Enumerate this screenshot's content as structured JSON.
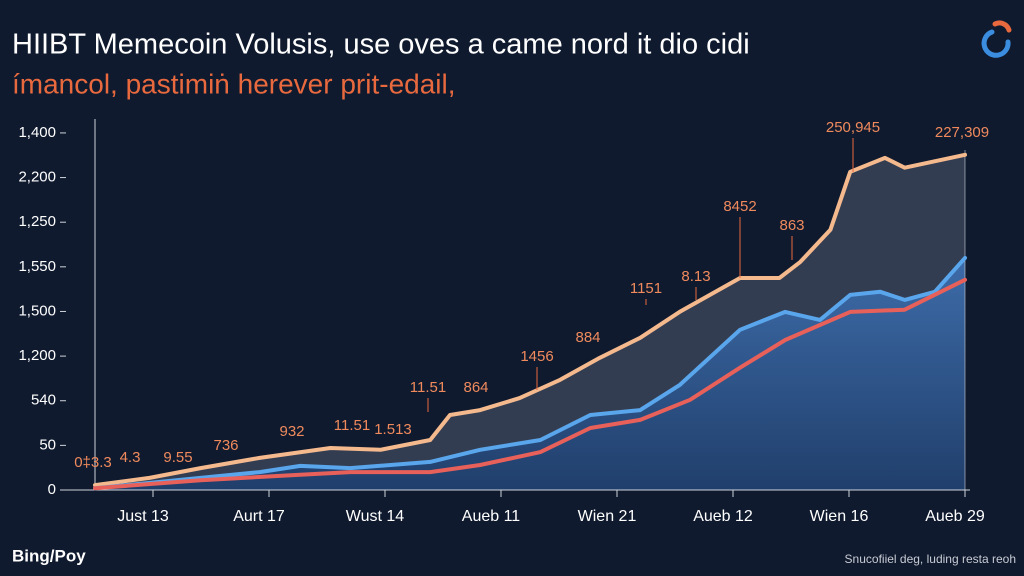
{
  "chart_data": {
    "type": "line",
    "title": "HIIBT Memecoin Volusis, use oves a came nord it dio cidi",
    "subtitle": "ímancol, pastimiṅ herever prit-edail,",
    "source_left": "Bing/Poy",
    "source_right": "Snucofiiel deg, luding resta reoh",
    "xlim": [
      0,
      7.5
    ],
    "xticks": [
      {
        "value": 0.5,
        "label": "Just 13"
      },
      {
        "value": 1.5,
        "label": "Aurt 17"
      },
      {
        "value": 2.5,
        "label": "Wust 14"
      },
      {
        "value": 3.5,
        "label": "Aueb 11"
      },
      {
        "value": 4.5,
        "label": "Wien 21"
      },
      {
        "value": 5.5,
        "label": "Aueb 12"
      },
      {
        "value": 6.5,
        "label": "Wien 16"
      },
      {
        "value": 7.5,
        "label": "Aueb 29"
      }
    ],
    "ylim": [
      0,
      8.2
    ],
    "yticks": [
      0,
      {
        "value": 1,
        "label": "50"
      },
      {
        "value": 2,
        "label": "540"
      },
      {
        "value": 3,
        "label": "1,200"
      },
      {
        "value": 4,
        "label": "1,500"
      },
      {
        "value": 5,
        "label": "1,550"
      },
      {
        "value": 6,
        "label": "1,250"
      },
      {
        "value": 7,
        "label": "2,200"
      },
      {
        "value": 8,
        "label": "1,400"
      }
    ],
    "series": [
      {
        "color": "#f5b98e",
        "x": [
          0,
          0.47,
          0.91,
          1.42,
          2.03,
          2.46,
          2.89,
          3.06,
          3.32,
          3.66,
          4.01,
          4.35,
          4.7,
          5.04,
          5.56,
          5.9,
          6.08,
          6.34,
          6.51,
          6.81,
          6.98,
          7.5
        ],
        "values": [
          0.11,
          0.27,
          0.49,
          0.72,
          0.94,
          0.9,
          1.12,
          1.68,
          1.79,
          2.06,
          2.47,
          2.96,
          3.41,
          3.99,
          4.75,
          4.75,
          5.11,
          5.83,
          7.13,
          7.44,
          7.22,
          7.51
        ]
      },
      {
        "color": "#5aa6ec",
        "x": [
          0,
          0.91,
          1.42,
          1.77,
          2.2,
          2.89,
          3.32,
          3.84,
          4.27,
          4.7,
          5.04,
          5.56,
          5.95,
          6.25,
          6.51,
          6.77,
          6.98,
          7.24,
          7.5
        ],
        "values": [
          0.04,
          0.27,
          0.4,
          0.54,
          0.49,
          0.63,
          0.9,
          1.12,
          1.68,
          1.79,
          2.35,
          3.59,
          3.99,
          3.81,
          4.37,
          4.44,
          4.26,
          4.44,
          5.2
        ]
      },
      {
        "color": "#e8605a",
        "x": [
          0,
          0.91,
          1.77,
          2.2,
          2.89,
          3.32,
          3.84,
          4.27,
          4.7,
          5.13,
          5.56,
          5.95,
          6.51,
          6.98,
          7.5
        ],
        "values": [
          0.04,
          0.22,
          0.34,
          0.4,
          0.4,
          0.56,
          0.85,
          1.39,
          1.57,
          2.02,
          2.74,
          3.36,
          3.99,
          4.04,
          4.71
        ]
      }
    ],
    "annotations": [
      "0‡3.3",
      "4.3",
      "9.55",
      "736",
      "932",
      "11.51",
      "1.513",
      "11.51",
      "864",
      "1456",
      "884",
      "1151",
      "8.13",
      "8452",
      "863",
      "250,945",
      "227,309"
    ]
  }
}
